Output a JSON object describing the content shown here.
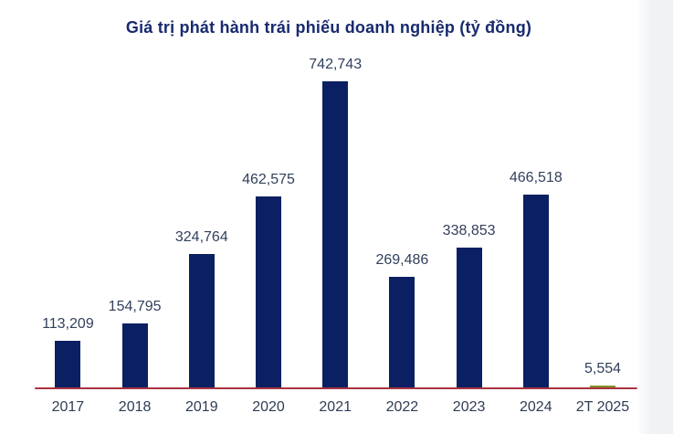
{
  "chart_data": {
    "type": "bar",
    "title": "Giá trị phát hành trái phiếu doanh nghiệp (tỷ đồng)",
    "unit": "tỷ đồng",
    "categories": [
      "2017",
      "2018",
      "2019",
      "2020",
      "2021",
      "2022",
      "2023",
      "2024",
      "2T 2025"
    ],
    "values": [
      113209,
      154795,
      324764,
      462575,
      742743,
      269486,
      338853,
      466518,
      5554
    ],
    "value_labels": [
      "113,209",
      "154,795",
      "324,764",
      "462,575",
      "742,743",
      "269,486",
      "338,853",
      "466,518",
      "5,554"
    ],
    "highlight_index": 8,
    "ylim": [
      0,
      742743
    ],
    "grid": false,
    "legend": null,
    "colors": {
      "bar": "#0a2062",
      "bar_highlight": "#85902b",
      "axis_line": "#a93340",
      "title": "#182a6e",
      "value_label": "#32405c",
      "category_label": "#2f3c55"
    }
  }
}
